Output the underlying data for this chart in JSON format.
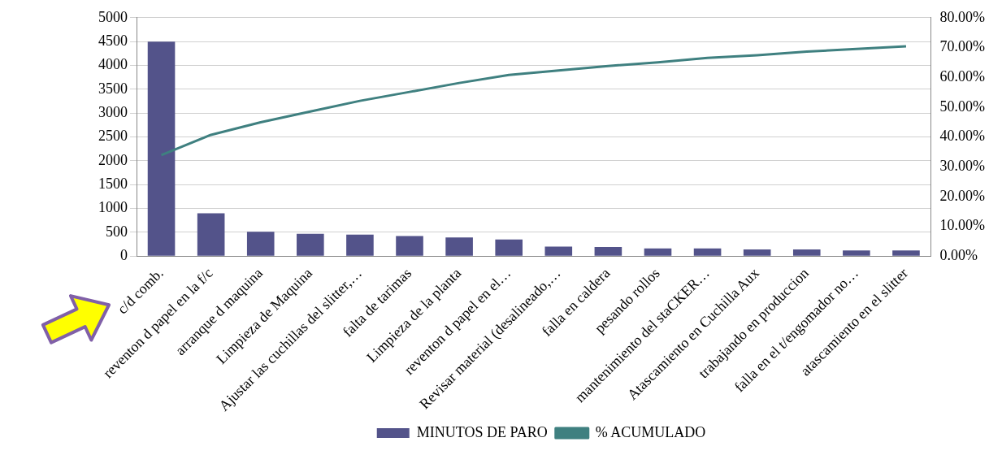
{
  "chart_data": {
    "type": "bar",
    "categories": [
      "c/d comb.",
      "reventon d papel en la f/c",
      "arranque d maquina",
      "Limpieza de Maquina",
      "Ajustar las cuchillas del slitter,…",
      "falta de tarimas",
      "Limpieza de la planta",
      "reventon d papel en el…",
      "Revisar material (desalineado,…",
      "falla en caldera",
      "pesando rollos",
      "mantenimiento del staCKER…",
      "Atascamiento en Cuchilla Aux",
      "trabajando en produccion",
      "falla en el t/engomador no…",
      "atascamiento en el slitter"
    ],
    "series": [
      {
        "name": "MINUTOS DE PARO",
        "color": "#53538a",
        "values": [
          4500,
          900,
          510,
          470,
          450,
          420,
          390,
          350,
          200,
          190,
          160,
          160,
          140,
          140,
          120,
          120
        ]
      },
      {
        "name": "% ACUMULADO",
        "type": "line",
        "axis": "y2",
        "color": "#3f8080",
        "values": [
          33.9,
          40.7,
          44.9,
          48.5,
          52.1,
          55.1,
          58.1,
          60.8,
          62.3,
          63.8,
          65.0,
          66.5,
          67.4,
          68.6,
          69.5,
          70.4
        ]
      }
    ],
    "ylim": [
      0,
      5000
    ],
    "yticks": [
      0,
      500,
      1000,
      1500,
      2000,
      2500,
      3000,
      3500,
      4000,
      4500,
      5000
    ],
    "y2lim": [
      0,
      80
    ],
    "y2ticks": [
      {
        "value": 0,
        "label": "0.00%"
      },
      {
        "value": 10,
        "label": "10.00%"
      },
      {
        "value": 20,
        "label": "20.00%"
      },
      {
        "value": 30,
        "label": "30.00%"
      },
      {
        "value": 40,
        "label": "40.00%"
      },
      {
        "value": 50,
        "label": "50.00%"
      },
      {
        "value": 60,
        "label": "60.00%"
      },
      {
        "value": 70,
        "label": "70.00%"
      },
      {
        "value": 80,
        "label": "80.00%"
      }
    ],
    "grid": "y",
    "legend": "bottom"
  }
}
